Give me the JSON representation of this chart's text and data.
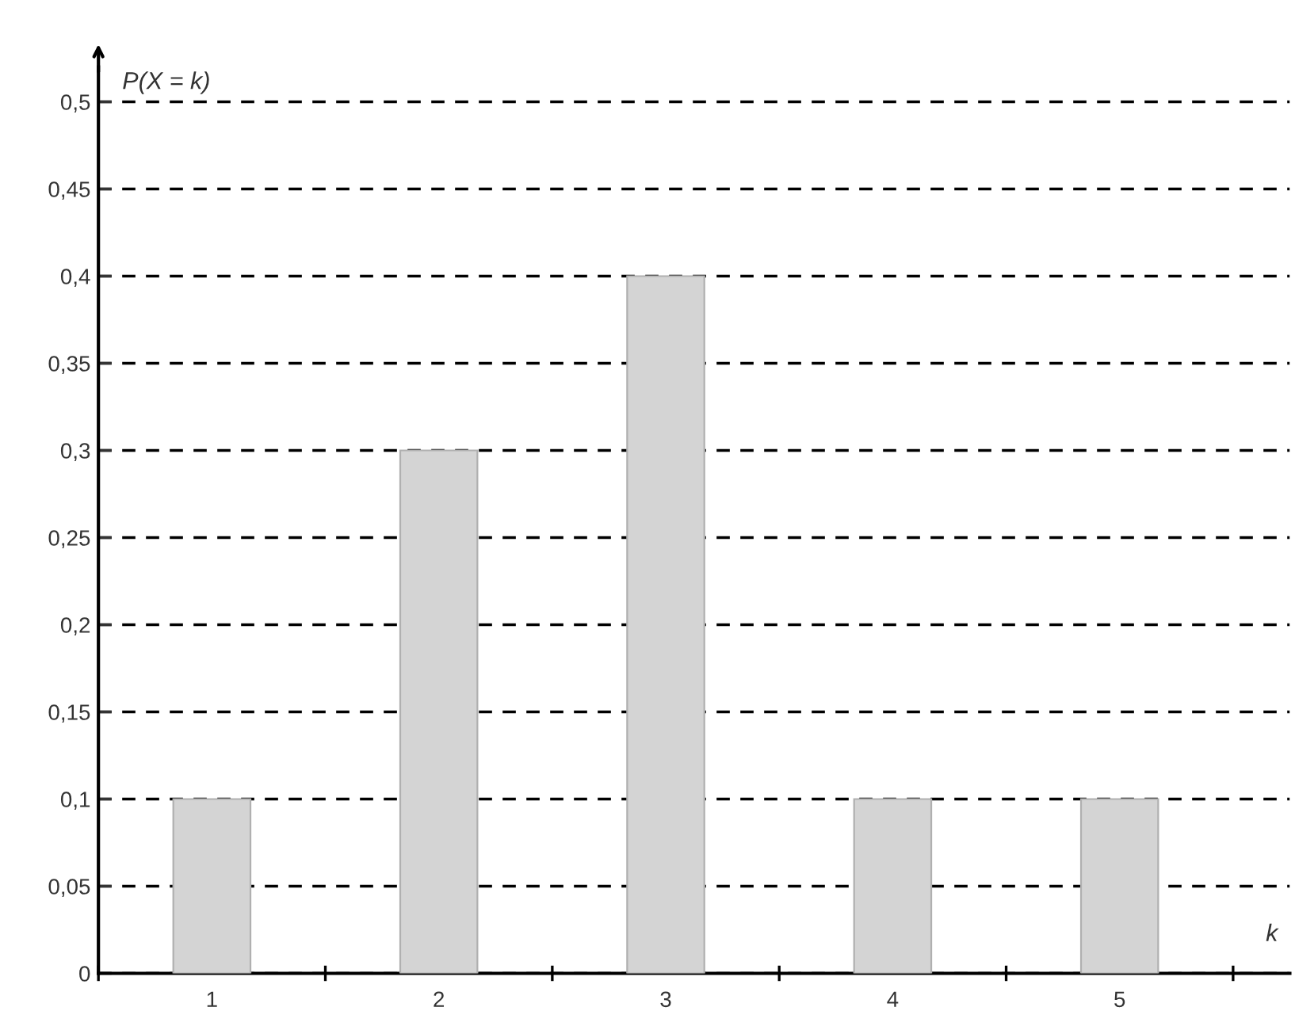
{
  "chart_data": {
    "type": "bar",
    "categories": [
      "1",
      "2",
      "3",
      "4",
      "5"
    ],
    "values": [
      0.1,
      0.3,
      0.4,
      0.1,
      0.1
    ],
    "color": "#d4d4d4",
    "xlabel": "k",
    "ylabel": "P(X = k)",
    "ylim": [
      0,
      0.52
    ],
    "yticks": [
      0,
      {
        "value": 0.05,
        "label": "0,05"
      },
      {
        "value": 0.1,
        "label": "0,1"
      },
      {
        "value": 0.15,
        "label": "0,15"
      },
      {
        "value": 0.2,
        "label": "0,2"
      },
      {
        "value": 0.25,
        "label": "0,25"
      },
      {
        "value": 0.3,
        "label": "0,3"
      },
      {
        "value": 0.35,
        "label": "0,35"
      },
      {
        "value": 0.4,
        "label": "0,4"
      },
      {
        "value": 0.45,
        "label": "0,45"
      },
      {
        "value": 0.5,
        "label": "0,5"
      }
    ],
    "grid": "y",
    "line_style": "dashed",
    "legend": false
  }
}
